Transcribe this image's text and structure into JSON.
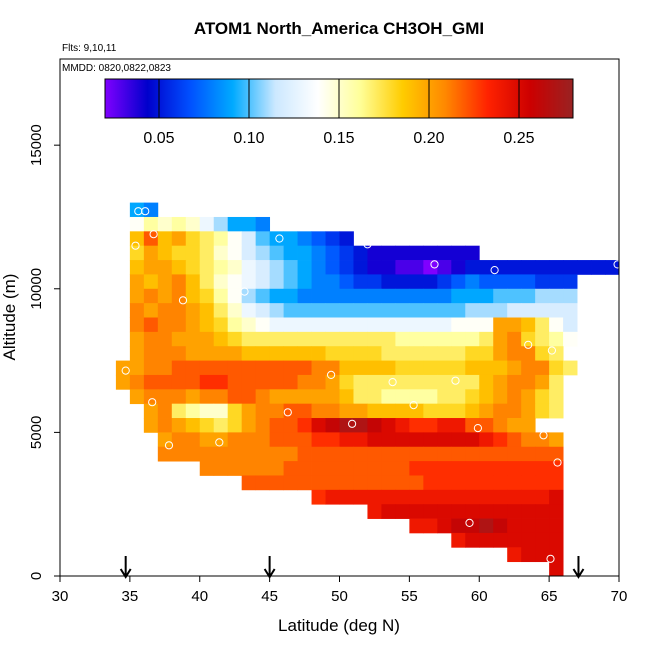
{
  "chart_data": {
    "type": "heatmap",
    "title": "ATOM1 North_America CH3OH_GMI",
    "flights_note": "Flts: 9,10,11",
    "date_note": "MMDD: 0820,0822,0823",
    "xlabel": "Latitude (deg N)",
    "ylabel": "Altitude (m)",
    "xlim": [
      30,
      70
    ],
    "ylim": [
      0,
      18000
    ],
    "x_ticks": [
      30,
      35,
      40,
      45,
      50,
      55,
      60,
      65,
      70
    ],
    "y_ticks": [
      0,
      5000,
      10000,
      15000
    ],
    "grid": false,
    "colorbar": {
      "range": [
        0.02,
        0.28
      ],
      "ticks": [
        0.05,
        0.1,
        0.15,
        0.2,
        0.25
      ],
      "tick_labels": [
        "0.05",
        "0.10",
        "0.15",
        "0.20",
        "0.25"
      ],
      "placement": "top-inside",
      "colors": [
        "#8000ff",
        "#0000cc",
        "#0050ff",
        "#00aaff",
        "#cce8ff",
        "#ffffff",
        "#ffff99",
        "#ffcc00",
        "#ff8800",
        "#ff2200",
        "#cc0000",
        "#992222"
      ]
    },
    "markers": {
      "symbol": "down-arrow",
      "latitudes": [
        34.7,
        45.0,
        67.1
      ]
    },
    "cell_size": {
      "lat": 1.0,
      "alt": 500
    },
    "rows": [
      {
        "alt": 12750,
        "lat_start": 35,
        "values": [
          0.09,
          0.08
        ]
      },
      {
        "alt": 12250,
        "lat_start": 35,
        "values": [
          0.14,
          0.16,
          0.15,
          0.16,
          0.15,
          0.13,
          0.11,
          0.09,
          0.09,
          0.08
        ]
      },
      {
        "alt": 11750,
        "lat_start": 35,
        "values": [
          0.19,
          0.22,
          0.19,
          0.2,
          0.18,
          0.17,
          0.16,
          0.14,
          0.12,
          0.1,
          0.09,
          0.09,
          0.08,
          0.07,
          0.06,
          0.05
        ]
      },
      {
        "alt": 11250,
        "lat_start": 35,
        "values": [
          0.18,
          0.2,
          0.19,
          0.18,
          0.18,
          0.17,
          0.15,
          0.14,
          0.12,
          0.11,
          0.1,
          0.09,
          0.09,
          0.08,
          0.07,
          0.06,
          0.05,
          0.04,
          0.04,
          0.04,
          0.04,
          0.04,
          0.04,
          0.04,
          0.04
        ]
      },
      {
        "alt": 10750,
        "lat_start": 35,
        "values": [
          0.19,
          0.2,
          0.2,
          0.19,
          0.18,
          0.17,
          0.16,
          0.15,
          0.13,
          0.12,
          0.11,
          0.1,
          0.09,
          0.08,
          0.07,
          0.06,
          0.05,
          0.04,
          0.04,
          0.03,
          0.03,
          0.02,
          0.03,
          0.04,
          0.05,
          0.05,
          0.05,
          0.05,
          0.05,
          0.05,
          0.05,
          0.05,
          0.05,
          0.05,
          0.05
        ]
      },
      {
        "alt": 10250,
        "lat_start": 35,
        "values": [
          0.2,
          0.19,
          0.2,
          0.21,
          0.19,
          0.17,
          0.15,
          0.14,
          0.13,
          0.12,
          0.11,
          0.1,
          0.09,
          0.08,
          0.08,
          0.07,
          0.06,
          0.06,
          0.05,
          0.05,
          0.05,
          0.05,
          0.06,
          0.07,
          0.08,
          0.07,
          0.07,
          0.07,
          0.07,
          0.06,
          0.06,
          0.06
        ]
      },
      {
        "alt": 9750,
        "lat_start": 35,
        "values": [
          0.2,
          0.21,
          0.2,
          0.21,
          0.19,
          0.18,
          0.16,
          0.14,
          0.11,
          0.1,
          0.09,
          0.09,
          0.08,
          0.08,
          0.08,
          0.08,
          0.08,
          0.08,
          0.08,
          0.08,
          0.08,
          0.08,
          0.08,
          0.09,
          0.09,
          0.09,
          0.1,
          0.1,
          0.1,
          0.11,
          0.11,
          0.11
        ]
      },
      {
        "alt": 9250,
        "lat_start": 35,
        "values": [
          0.21,
          0.2,
          0.21,
          0.21,
          0.2,
          0.19,
          0.17,
          0.15,
          0.13,
          0.12,
          0.11,
          0.1,
          0.1,
          0.1,
          0.1,
          0.1,
          0.1,
          0.1,
          0.1,
          0.1,
          0.1,
          0.1,
          0.1,
          0.1,
          0.11,
          0.11,
          0.11,
          0.12,
          0.12,
          0.12,
          0.12,
          0.12
        ]
      },
      {
        "alt": 8750,
        "lat_start": 35,
        "values": [
          0.21,
          0.22,
          0.21,
          0.21,
          0.2,
          0.19,
          0.18,
          0.16,
          0.15,
          0.14,
          0.13,
          0.13,
          0.13,
          0.13,
          0.13,
          0.13,
          0.13,
          0.13,
          0.13,
          0.13,
          0.13,
          0.13,
          0.13,
          0.14,
          0.14,
          0.14,
          0.2,
          0.2,
          0.19,
          0.17,
          0.14,
          0.12
        ]
      },
      {
        "alt": 8250,
        "lat_start": 35,
        "values": [
          0.2,
          0.21,
          0.21,
          0.2,
          0.2,
          0.2,
          0.19,
          0.18,
          0.17,
          0.17,
          0.17,
          0.17,
          0.17,
          0.17,
          0.17,
          0.17,
          0.17,
          0.17,
          0.17,
          0.16,
          0.16,
          0.16,
          0.16,
          0.16,
          0.16,
          0.17,
          0.2,
          0.21,
          0.18,
          0.17,
          0.16,
          0.14
        ]
      },
      {
        "alt": 7750,
        "lat_start": 35,
        "values": [
          0.2,
          0.21,
          0.21,
          0.21,
          0.2,
          0.2,
          0.2,
          0.2,
          0.19,
          0.19,
          0.19,
          0.19,
          0.19,
          0.19,
          0.18,
          0.18,
          0.18,
          0.18,
          0.17,
          0.17,
          0.17,
          0.17,
          0.17,
          0.17,
          0.18,
          0.18,
          0.2,
          0.21,
          0.21,
          0.18,
          0.17
        ]
      },
      {
        "alt": 7250,
        "lat_start": 34,
        "values": [
          0.2,
          0.2,
          0.21,
          0.21,
          0.22,
          0.22,
          0.22,
          0.22,
          0.22,
          0.22,
          0.22,
          0.22,
          0.22,
          0.22,
          0.21,
          0.21,
          0.19,
          0.19,
          0.19,
          0.19,
          0.18,
          0.18,
          0.18,
          0.18,
          0.18,
          0.19,
          0.19,
          0.19,
          0.2,
          0.21,
          0.21,
          0.18,
          0.17
        ]
      },
      {
        "alt": 6750,
        "lat_start": 34,
        "values": [
          0.2,
          0.21,
          0.22,
          0.22,
          0.22,
          0.22,
          0.23,
          0.23,
          0.22,
          0.22,
          0.22,
          0.22,
          0.22,
          0.21,
          0.21,
          0.2,
          0.18,
          0.17,
          0.17,
          0.17,
          0.17,
          0.17,
          0.17,
          0.17,
          0.17,
          0.17,
          0.19,
          0.2,
          0.21,
          0.21,
          0.2,
          0.17
        ]
      },
      {
        "alt": 6250,
        "lat_start": 35,
        "values": [
          0.2,
          0.21,
          0.21,
          0.21,
          0.2,
          0.21,
          0.21,
          0.22,
          0.22,
          0.21,
          0.2,
          0.2,
          0.2,
          0.2,
          0.2,
          0.19,
          0.17,
          0.17,
          0.16,
          0.16,
          0.16,
          0.16,
          0.17,
          0.17,
          0.18,
          0.19,
          0.2,
          0.21,
          0.2,
          0.18,
          0.17
        ]
      },
      {
        "alt": 5750,
        "lat_start": 36,
        "values": [
          0.2,
          0.21,
          0.17,
          0.16,
          0.15,
          0.15,
          0.18,
          0.2,
          0.21,
          0.21,
          0.22,
          0.22,
          0.21,
          0.21,
          0.2,
          0.2,
          0.19,
          0.19,
          0.19,
          0.19,
          0.18,
          0.18,
          0.18,
          0.19,
          0.2,
          0.21,
          0.21,
          0.2,
          0.18,
          0.17
        ]
      },
      {
        "alt": 5250,
        "lat_start": 36,
        "values": [
          0.2,
          0.21,
          0.2,
          0.19,
          0.18,
          0.17,
          0.18,
          0.2,
          0.21,
          0.22,
          0.22,
          0.23,
          0.25,
          0.26,
          0.27,
          0.27,
          0.26,
          0.25,
          0.24,
          0.23,
          0.23,
          0.24,
          0.24,
          0.22,
          0.22,
          0.21,
          0.2,
          0.2
        ]
      },
      {
        "alt": 4750,
        "lat_start": 37,
        "values": [
          0.2,
          0.21,
          0.21,
          0.2,
          0.2,
          0.21,
          0.21,
          0.21,
          0.22,
          0.22,
          0.22,
          0.23,
          0.23,
          0.24,
          0.24,
          0.25,
          0.25,
          0.25,
          0.25,
          0.25,
          0.25,
          0.25,
          0.25,
          0.24,
          0.23,
          0.22,
          0.21,
          0.21,
          0.2
        ]
      },
      {
        "alt": 4250,
        "lat_start": 37,
        "values": [
          0.21,
          0.21,
          0.21,
          0.21,
          0.21,
          0.21,
          0.21,
          0.21,
          0.21,
          0.21,
          0.22,
          0.22,
          0.22,
          0.22,
          0.22,
          0.22,
          0.22,
          0.22,
          0.22,
          0.22,
          0.22,
          0.22,
          0.22,
          0.22,
          0.22,
          0.22,
          0.22,
          0.22,
          0.22
        ]
      },
      {
        "alt": 3750,
        "lat_start": 40,
        "values": [
          0.21,
          0.21,
          0.21,
          0.21,
          0.21,
          0.21,
          0.22,
          0.22,
          0.22,
          0.22,
          0.22,
          0.22,
          0.22,
          0.22,
          0.22,
          0.23,
          0.23,
          0.23,
          0.23,
          0.23,
          0.23,
          0.23,
          0.23,
          0.23,
          0.23,
          0.23
        ]
      },
      {
        "alt": 3250,
        "lat_start": 43,
        "values": [
          0.22,
          0.22,
          0.22,
          0.22,
          0.22,
          0.22,
          0.22,
          0.22,
          0.22,
          0.22,
          0.22,
          0.22,
          0.22,
          0.23,
          0.23,
          0.23,
          0.23,
          0.23,
          0.23,
          0.23,
          0.23,
          0.23,
          0.23
        ]
      },
      {
        "alt": 2750,
        "lat_start": 48,
        "values": [
          0.23,
          0.24,
          0.24,
          0.24,
          0.24,
          0.24,
          0.24,
          0.24,
          0.24,
          0.24,
          0.24,
          0.24,
          0.24,
          0.24,
          0.24,
          0.24,
          0.24,
          0.25
        ]
      },
      {
        "alt": 2250,
        "lat_start": 52,
        "values": [
          0.24,
          0.25,
          0.25,
          0.25,
          0.25,
          0.25,
          0.25,
          0.25,
          0.25,
          0.25,
          0.25,
          0.25,
          0.25,
          0.25
        ]
      },
      {
        "alt": 1750,
        "lat_start": 55,
        "values": [
          0.24,
          0.24,
          0.25,
          0.26,
          0.26,
          0.27,
          0.26,
          0.25,
          0.25,
          0.25,
          0.25
        ]
      },
      {
        "alt": 1250,
        "lat_start": 58,
        "values": [
          0.24,
          0.25,
          0.25,
          0.25,
          0.25,
          0.25,
          0.25,
          0.25
        ]
      },
      {
        "alt": 750,
        "lat_start": 62,
        "values": [
          0.24,
          0.25,
          0.25,
          0.25
        ]
      },
      {
        "alt": 250,
        "lat_start": 65,
        "values": [
          0.25
        ]
      }
    ],
    "observations": [
      {
        "lat": 35.6,
        "alt": 12700
      },
      {
        "lat": 36.1,
        "alt": 12700
      },
      {
        "lat": 36.7,
        "alt": 11900
      },
      {
        "lat": 35.4,
        "alt": 11500
      },
      {
        "lat": 45.7,
        "alt": 11750
      },
      {
        "lat": 52.0,
        "alt": 11550
      },
      {
        "lat": 56.8,
        "alt": 10850
      },
      {
        "lat": 61.1,
        "alt": 10650
      },
      {
        "lat": 69.9,
        "alt": 10850
      },
      {
        "lat": 43.2,
        "alt": 9900
      },
      {
        "lat": 38.8,
        "alt": 9600
      },
      {
        "lat": 63.5,
        "alt": 8050
      },
      {
        "lat": 65.2,
        "alt": 7850
      },
      {
        "lat": 34.7,
        "alt": 7150
      },
      {
        "lat": 49.4,
        "alt": 7000
      },
      {
        "lat": 53.8,
        "alt": 6750
      },
      {
        "lat": 58.3,
        "alt": 6800
      },
      {
        "lat": 36.6,
        "alt": 6050
      },
      {
        "lat": 55.3,
        "alt": 5950
      },
      {
        "lat": 46.3,
        "alt": 5700
      },
      {
        "lat": 50.9,
        "alt": 5300
      },
      {
        "lat": 59.9,
        "alt": 5150
      },
      {
        "lat": 64.6,
        "alt": 4900
      },
      {
        "lat": 41.4,
        "alt": 4650
      },
      {
        "lat": 37.8,
        "alt": 4550
      },
      {
        "lat": 65.6,
        "alt": 3950
      },
      {
        "lat": 59.3,
        "alt": 1850
      },
      {
        "lat": 65.1,
        "alt": 600
      }
    ]
  }
}
